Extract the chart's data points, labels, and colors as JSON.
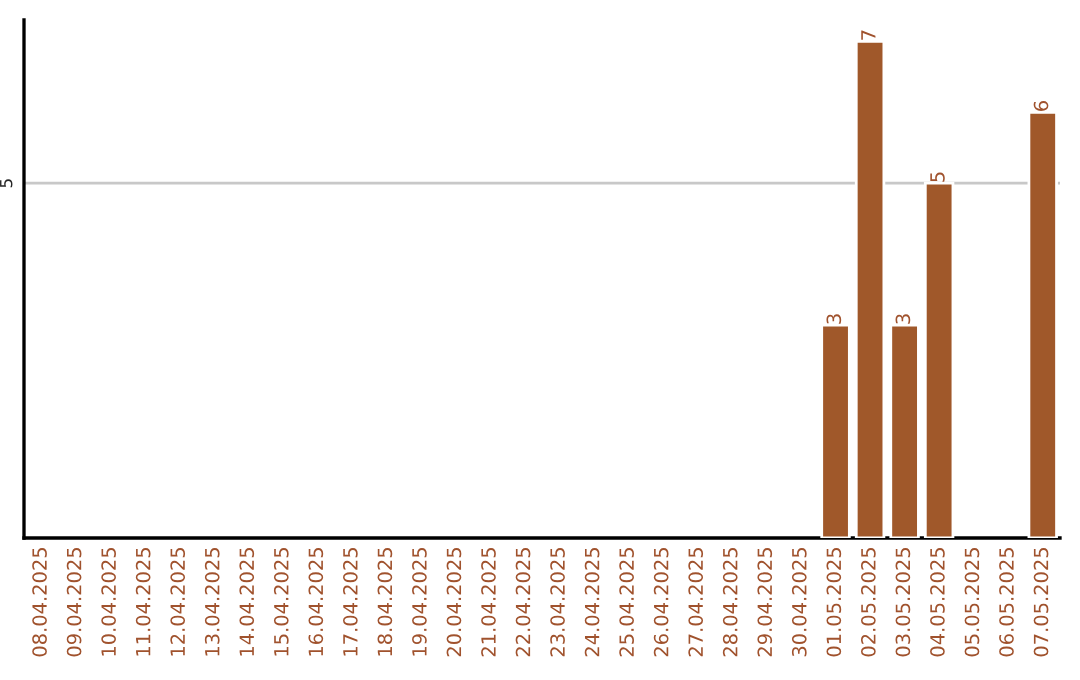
{
  "chart_data": {
    "type": "bar",
    "categories": [
      "08.04.2025",
      "09.04.2025",
      "10.04.2025",
      "11.04.2025",
      "12.04.2025",
      "13.04.2025",
      "14.04.2025",
      "15.04.2025",
      "16.04.2025",
      "17.04.2025",
      "18.04.2025",
      "19.04.2025",
      "20.04.2025",
      "21.04.2025",
      "22.04.2025",
      "23.04.2025",
      "24.04.2025",
      "25.04.2025",
      "26.04.2025",
      "27.04.2025",
      "28.04.2025",
      "29.04.2025",
      "30.04.2025",
      "01.05.2025",
      "02.05.2025",
      "03.05.2025",
      "04.05.2025",
      "05.05.2025",
      "06.05.2025",
      "07.05.2025"
    ],
    "values": [
      null,
      null,
      null,
      null,
      null,
      null,
      null,
      null,
      null,
      null,
      null,
      null,
      null,
      null,
      null,
      null,
      null,
      null,
      null,
      null,
      null,
      null,
      null,
      3,
      7,
      3,
      5,
      null,
      null,
      6
    ],
    "color": "#a0582a",
    "ylim": [
      0,
      7.3
    ],
    "yticks": [
      5
    ],
    "grid": "y",
    "data_labels": true
  }
}
